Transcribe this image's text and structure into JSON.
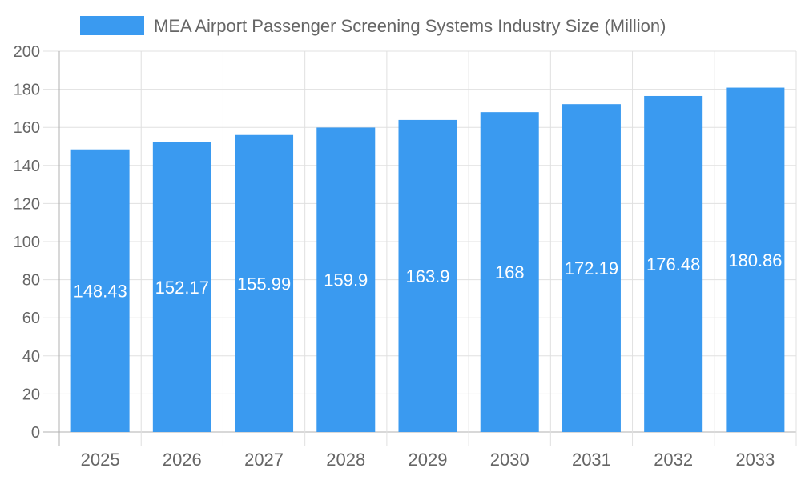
{
  "chart_data": {
    "type": "bar",
    "title": "",
    "legend": {
      "entries": [
        "MEA Airport Passenger Screening Systems Industry Size (Million)"
      ],
      "placement": "top"
    },
    "series": [
      {
        "name": "MEA Airport Passenger Screening Systems Industry Size (Million)",
        "values": [
          148.43,
          152.17,
          155.99,
          159.9,
          163.9,
          168,
          172.19,
          176.48,
          180.86
        ],
        "color": "#3a9af0"
      }
    ],
    "categories": [
      "2025",
      "2026",
      "2027",
      "2028",
      "2029",
      "2030",
      "2031",
      "2032",
      "2033"
    ],
    "xlabel": "",
    "ylabel": "",
    "ylim": [
      0,
      200
    ],
    "yticks": [
      0,
      20,
      40,
      60,
      80,
      100,
      120,
      140,
      160,
      180,
      200
    ],
    "grid": true,
    "data_labels": "inside-center, white"
  }
}
